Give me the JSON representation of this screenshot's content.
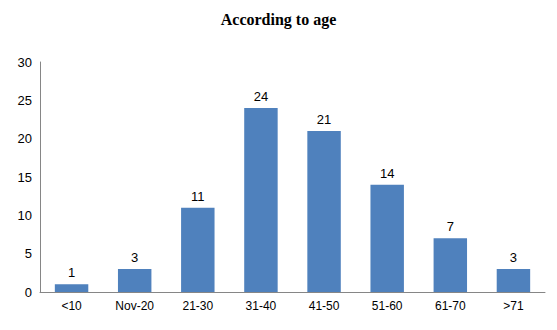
{
  "chart_data": {
    "type": "bar",
    "title": "According to age",
    "categories": [
      "<10",
      "Nov-20",
      "21-30",
      "31-40",
      "41-50",
      "51-60",
      "61-70",
      ">71"
    ],
    "values": [
      1,
      3,
      11,
      24,
      21,
      14,
      7,
      3
    ],
    "color": "#4f81bd",
    "ylim": [
      0,
      30
    ],
    "yticks": [
      0,
      5,
      10,
      15,
      20,
      25,
      30
    ],
    "grid": false,
    "data_labels": true
  }
}
